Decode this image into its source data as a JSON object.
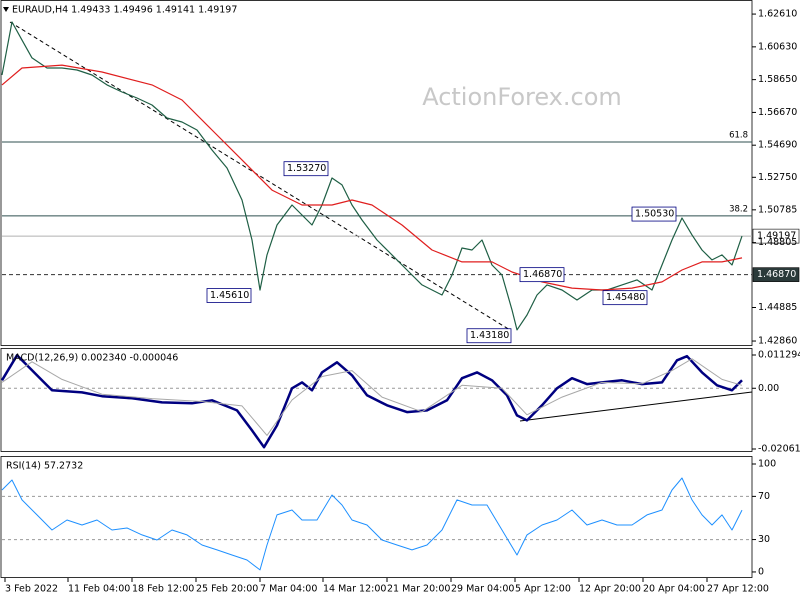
{
  "chart_data": [
    {
      "type": "line",
      "title": "EURAUD,H4 1.49433 1.49496 1.49141 1.49197",
      "watermark": "ActionForex.com",
      "xlim": [
        0,
        750
      ],
      "ylim": [
        1.4256,
        1.6346
      ],
      "yticks": [
        {
          "value": 1.6261,
          "label": "1.62610"
        },
        {
          "value": 1.6063,
          "label": "1.60630"
        },
        {
          "value": 1.5865,
          "label": "1.58650"
        },
        {
          "value": 1.5667,
          "label": "1.56670"
        },
        {
          "value": 1.5469,
          "label": "1.54690"
        },
        {
          "value": 1.5275,
          "label": "1.52750"
        },
        1.50785,
        1.48805,
        1.44885,
        {
          "value": 1.4286,
          "label": "1.42860"
        }
      ],
      "series": [
        {
          "name": "EURAUD",
          "color": "#1f5f45",
          "x": [
            0,
            10,
            20,
            30,
            45,
            60,
            75,
            90,
            105,
            120,
            135,
            150,
            165,
            180,
            195,
            210,
            225,
            240,
            250,
            258,
            265,
            275,
            290,
            300,
            310,
            320,
            330,
            340,
            350,
            360,
            375,
            390,
            405,
            420,
            440,
            450,
            460,
            470,
            480,
            490,
            500,
            510,
            515,
            525,
            535,
            545,
            560,
            575,
            590,
            605,
            620,
            635,
            650,
            660,
            670,
            680,
            690,
            700,
            710,
            720,
            730,
            740
          ],
          "values": [
            1.5893,
            1.6213,
            1.6104,
            1.5996,
            1.5935,
            1.5935,
            1.5923,
            1.5893,
            1.5833,
            1.579,
            1.5754,
            1.5712,
            1.5633,
            1.5609,
            1.5561,
            1.544,
            1.5331,
            1.5138,
            1.4896,
            1.4594,
            1.4806,
            1.4987,
            1.5108,
            1.5047,
            1.4987,
            1.5108,
            1.5271,
            1.5229,
            1.5108,
            1.5017,
            1.4896,
            1.4806,
            1.4715,
            1.4625,
            1.4564,
            1.4685,
            1.4848,
            1.4836,
            1.4896,
            1.4745,
            1.4685,
            1.4474,
            1.4353,
            1.4443,
            1.4564,
            1.4625,
            1.4594,
            1.4534,
            1.4594,
            1.4594,
            1.4625,
            1.4655,
            1.4594,
            1.4745,
            1.4896,
            1.5029,
            1.4927,
            1.4836,
            1.4776,
            1.4806,
            1.4745,
            1.492
          ]
        },
        {
          "name": "MA",
          "color": "#e01e1e",
          "x": [
            0,
            20,
            60,
            100,
            150,
            180,
            210,
            240,
            270,
            300,
            330,
            350,
            370,
            400,
            430,
            460,
            490,
            510,
            540,
            570,
            600,
            630,
            660,
            680,
            700,
            720,
            740
          ],
          "values": [
            1.5833,
            1.5935,
            1.5953,
            1.5911,
            1.5833,
            1.5742,
            1.5561,
            1.538,
            1.5198,
            1.5108,
            1.5108,
            1.5138,
            1.5108,
            1.4987,
            1.4836,
            1.4764,
            1.4764,
            1.4703,
            1.4643,
            1.4606,
            1.4594,
            1.4606,
            1.4643,
            1.4715,
            1.4764,
            1.4764,
            1.4788
          ]
        }
      ],
      "hlines": [
        {
          "value": 1.5488,
          "label": "61.8",
          "color": "#2f4f4f"
        },
        {
          "value": 1.5042,
          "label": "38.2",
          "color": "#2f4f4f"
        },
        {
          "value": 1.4687,
          "label": "1.46870",
          "color": "#303030",
          "dashed": true,
          "fill": "#2b3a3a"
        },
        {
          "value": 1.49197,
          "label": "1.49197",
          "color": "#b0b0b0",
          "fill": "#ffffff"
        }
      ],
      "annotations": [
        {
          "x": 282,
          "value": 1.5327,
          "label": "1.53270"
        },
        {
          "x": 205,
          "value": 1.4561,
          "label": "1.45610"
        },
        {
          "x": 518,
          "value": 1.4687,
          "label": "1.46870"
        },
        {
          "x": 630,
          "value": 1.5053,
          "label": "1.50530"
        },
        {
          "x": 601,
          "value": 1.4548,
          "label": "1.45480"
        },
        {
          "x": 465,
          "value": 1.4318,
          "label": "1.43180"
        }
      ]
    },
    {
      "type": "line",
      "title": "MACD(12,26,9) 0.002340 -0.000046",
      "xlim": [
        0,
        750
      ],
      "ylim": [
        -0.02164,
        0.01367
      ],
      "yticks": [
        0.011294,
        {
          "value": 0,
          "label": "0.00"
        },
        -0.020618
      ],
      "levels": [
        0
      ],
      "series": [
        {
          "name": "MACD",
          "color": "#000080",
          "width": 2.5,
          "x": [
            0,
            15,
            30,
            50,
            80,
            100,
            130,
            160,
            190,
            210,
            235,
            250,
            262,
            275,
            290,
            300,
            310,
            320,
            335,
            350,
            365,
            385,
            405,
            425,
            445,
            460,
            475,
            490,
            505,
            515,
            525,
            540,
            555,
            570,
            585,
            600,
            620,
            640,
            660,
            675,
            685,
            700,
            715,
            730,
            740
          ],
          "values": [
            0.0027,
            0.0112,
            0.0061,
            -0.0007,
            -0.0014,
            -0.0027,
            -0.0034,
            -0.0048,
            -0.0051,
            -0.0041,
            -0.0075,
            -0.0143,
            -0.02,
            -0.0126,
            0,
            0.002,
            -0.0007,
            0.0054,
            0.0088,
            0.0044,
            -0.0024,
            -0.0058,
            -0.0081,
            -0.0075,
            -0.0041,
            0.0034,
            0.0054,
            0.0027,
            -0.0024,
            -0.0092,
            -0.0109,
            -0.0058,
            0,
            0.0034,
            0.0014,
            0.002,
            0.0027,
            0.0014,
            0.002,
            0.0095,
            0.0109,
            0.0054,
            0.001,
            -0.0007,
            0.0027
          ]
        },
        {
          "name": "Signal",
          "color": "#a8a8a8",
          "width": 1,
          "x": [
            0,
            30,
            60,
            100,
            150,
            200,
            240,
            265,
            290,
            320,
            350,
            380,
            420,
            460,
            500,
            525,
            560,
            600,
            640,
            670,
            690,
            720,
            740
          ],
          "values": [
            0.002,
            0.009,
            0.003,
            -0.002,
            -0.0035,
            -0.0045,
            -0.006,
            -0.016,
            -0.004,
            0.004,
            0.006,
            -0.003,
            -0.008,
            0.001,
            0,
            -0.009,
            -0.003,
            0.002,
            0.0015,
            0.006,
            0.01,
            0.003,
            0.001
          ]
        }
      ]
    },
    {
      "type": "line",
      "title": "RSI(14) 57.2732",
      "xlim": [
        0,
        750
      ],
      "ylim": [
        -5.6,
        107.4
      ],
      "yticks": [
        100,
        70,
        30,
        0
      ],
      "levels": [
        70,
        30
      ],
      "xticks": [
        {
          "value": 3,
          "label": "3 Feb 2022"
        },
        {
          "value": 66,
          "label": "11 Feb 04:00"
        },
        {
          "value": 130,
          "label": "18 Feb 12:00"
        },
        {
          "value": 194,
          "label": "25 Feb 20:00"
        },
        {
          "value": 258,
          "label": "7 Mar 04:00"
        },
        {
          "value": 321,
          "label": "14 Mar 12:00"
        },
        {
          "value": 385,
          "label": "21 Mar 20:00"
        },
        {
          "value": 449,
          "label": "29 Mar 04:00"
        },
        {
          "value": 513,
          "label": "5 Apr 12:00"
        },
        {
          "value": 577,
          "label": "12 Apr 20:00"
        },
        {
          "value": 641,
          "label": "20 Apr 04:00"
        },
        {
          "value": 705,
          "label": "27 Apr 12:00"
        }
      ],
      "series": [
        {
          "name": "RSI",
          "color": "#1e90ff",
          "width": 1,
          "x": [
            0,
            10,
            20,
            35,
            50,
            65,
            80,
            95,
            110,
            125,
            140,
            155,
            170,
            185,
            200,
            215,
            230,
            245,
            258,
            265,
            275,
            290,
            300,
            315,
            330,
            340,
            350,
            365,
            380,
            395,
            410,
            425,
            440,
            455,
            470,
            485,
            500,
            515,
            525,
            540,
            555,
            570,
            585,
            600,
            615,
            630,
            645,
            660,
            670,
            680,
            690,
            700,
            710,
            720,
            730,
            740
          ],
          "values": [
            75.9,
            85.2,
            66.7,
            52.8,
            38.9,
            48.1,
            43.5,
            48.1,
            38.9,
            40.7,
            34.3,
            29.6,
            38.9,
            34.3,
            25,
            20.4,
            15.7,
            11.1,
            1.9,
            25,
            52.8,
            57.4,
            48.1,
            48.1,
            71.3,
            62,
            48.1,
            43.5,
            29.6,
            25,
            20.4,
            25,
            38.9,
            66.7,
            62,
            62,
            38.9,
            15.7,
            34.3,
            43.5,
            48.1,
            57.4,
            43.5,
            48.1,
            43.5,
            43.5,
            52.8,
            57.4,
            75.9,
            87,
            66.7,
            52.8,
            43.5,
            52.8,
            38.9,
            57.3
          ]
        }
      ]
    }
  ]
}
